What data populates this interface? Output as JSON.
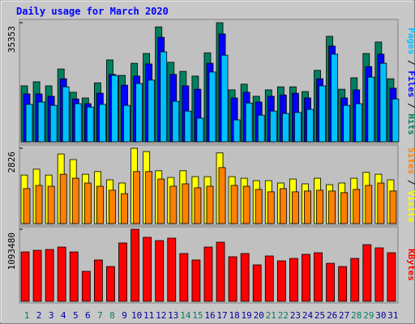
{
  "chart_data": {
    "type": "bar",
    "title": "Daily usage for March 2020",
    "categories": [
      "1",
      "2",
      "3",
      "4",
      "5",
      "6",
      "7",
      "8",
      "9",
      "10",
      "11",
      "12",
      "13",
      "14",
      "15",
      "16",
      "17",
      "18",
      "19",
      "20",
      "21",
      "22",
      "23",
      "24",
      "25",
      "26",
      "27",
      "28",
      "29",
      "30",
      "31"
    ],
    "highlight_categories": [
      "1",
      "7",
      "8",
      "14",
      "15",
      "21",
      "22",
      "28",
      "29"
    ],
    "highlight_color": "#008060",
    "category_color": "#0000a0",
    "panels": [
      {
        "ylabel": "Pages / Files / Hits",
        "ylim": [
          0,
          35353
        ],
        "yticks": [
          35353
        ],
        "series": [
          {
            "name": "Hits",
            "color": "#008060",
            "values": [
              16600,
              17800,
              16600,
              21600,
              14700,
              13000,
              17500,
              24300,
              19700,
              23300,
              26200,
              34100,
              23600,
              20900,
              19500,
              26400,
              35353,
              15400,
              17100,
              13500,
              15400,
              16300,
              16300,
              14900,
              21200,
              31300,
              15600,
              19000,
              26200,
              29600,
              18700
            ]
          },
          {
            "name": "Files",
            "color": "#0000ff",
            "values": [
              14200,
              14200,
              13500,
              18700,
              12700,
              11300,
              14400,
              20000,
              16800,
              19500,
              23100,
              31000,
              20000,
              16600,
              15600,
              23300,
              32000,
              13000,
              14700,
              11800,
              13500,
              13900,
              14400,
              13000,
              18700,
              28400,
              13000,
              15400,
              22300,
              26000,
              15900
            ]
          },
          {
            "name": "Pages",
            "color": "#00c0ff",
            "values": [
              11100,
              11800,
              10800,
              16300,
              11300,
              10300,
              11100,
              19700,
              10800,
              17300,
              18300,
              26700,
              12000,
              9100,
              7000,
              20700,
              25700,
              6500,
              11500,
              7900,
              9100,
              8400,
              8700,
              9600,
              16600,
              26000,
              10800,
              11300,
              19200,
              23300,
              12700
            ]
          }
        ]
      },
      {
        "ylabel": "Sites / Visits",
        "ylim": [
          0,
          2826
        ],
        "yticks": [
          2826
        ],
        "series": [
          {
            "name": "Visits",
            "color": "#ffff00",
            "values": [
              1820,
              2040,
              1820,
              2610,
              2400,
              1850,
              1950,
              1640,
              1520,
              2826,
              2700,
              1980,
              1730,
              1980,
              1760,
              1760,
              2650,
              1760,
              1700,
              1610,
              1610,
              1520,
              1670,
              1490,
              1700,
              1460,
              1520,
              1700,
              1920,
              1850,
              1640
            ]
          },
          {
            "name": "Sites",
            "color": "#ff8000",
            "values": [
              1310,
              1430,
              1400,
              1850,
              1700,
              1520,
              1400,
              1250,
              1120,
              1950,
              1950,
              1670,
              1400,
              1490,
              1340,
              1400,
              2100,
              1430,
              1400,
              1280,
              1190,
              1310,
              1190,
              1220,
              1250,
              1220,
              1160,
              1280,
              1430,
              1520,
              1220
            ]
          }
        ]
      },
      {
        "ylabel": "KBytes",
        "ylim": [
          0,
          1093480
        ],
        "yticks": [
          1093480
        ],
        "series": [
          {
            "name": "KBytes",
            "color": "#ff0000",
            "values": [
              749000,
              774000,
              786000,
              823000,
              749000,
              455000,
              627000,
              528000,
              885000,
              1093480,
              971000,
              921000,
              958000,
              725000,
              627000,
              823000,
              897000,
              676000,
              725000,
              553000,
              688000,
              614000,
              651000,
              713000,
              737000,
              577000,
              528000,
              651000,
              860000,
              811000,
              737000
            ]
          }
        ]
      }
    ]
  }
}
